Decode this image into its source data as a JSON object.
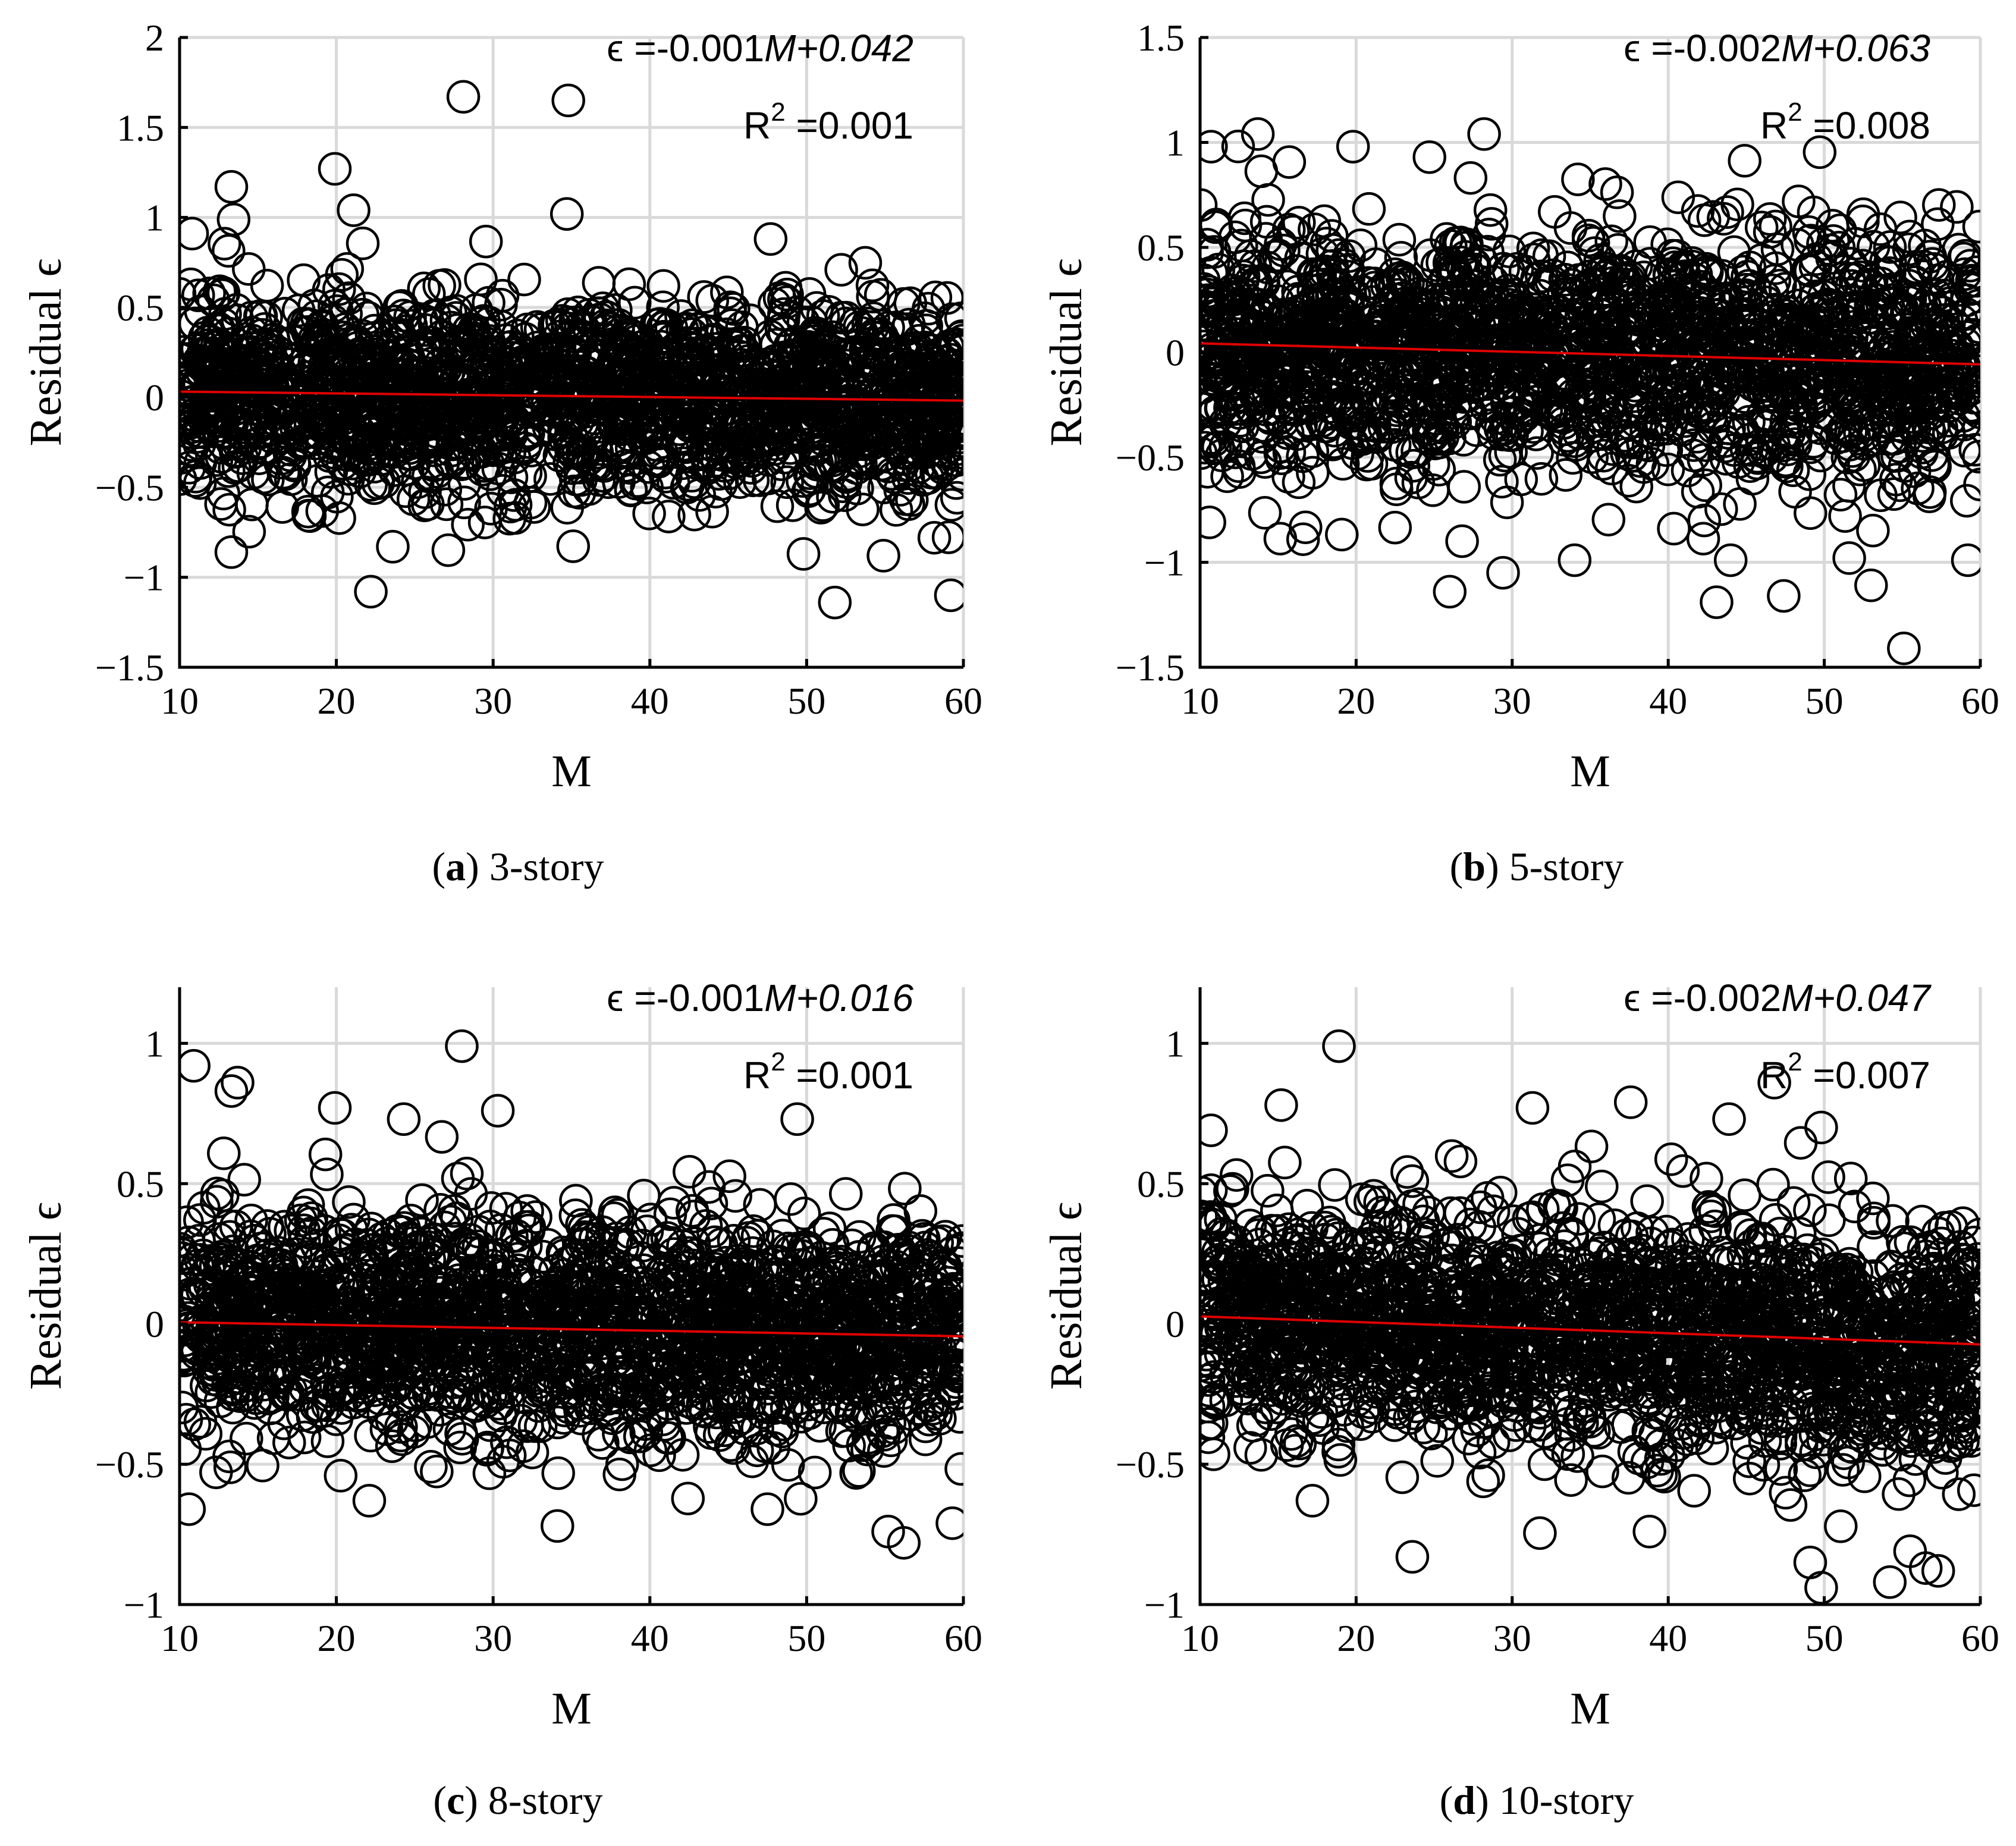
{
  "chart_data": [
    {
      "type": "scatter",
      "caption_letter": "a",
      "caption_text": " 3-story",
      "xlabel": "M",
      "ylabel": "Residual ϵ",
      "xlim": [
        10,
        60
      ],
      "ylim": [
        -1.5,
        2
      ],
      "xticks": [
        10,
        20,
        30,
        40,
        50,
        60
      ],
      "yticks": [
        -1.5,
        -1,
        -0.5,
        0,
        0.5,
        1,
        1.5,
        2
      ],
      "ytick_labels": [
        "−1.5",
        "−1",
        "−0.5",
        "0",
        "0.5",
        "1",
        "1.5",
        "2"
      ],
      "fit": {
        "slope": -0.001,
        "intercept": 0.042
      },
      "eq_prefix": "ϵ =-0.001",
      "eq_var": "M",
      "eq_suffix": "+0.042",
      "r2_label": "R",
      "r2_sup": "2",
      "r2_value": " =0.001",
      "n_points": 2000,
      "cloud_sd": 0.27,
      "seed": 11,
      "outliers": [
        [
          28.1,
          1.67
        ],
        [
          34.8,
          1.65
        ],
        [
          19.9,
          1.27
        ],
        [
          13.3,
          1.17
        ],
        [
          21.1,
          1.04
        ],
        [
          10.8,
          0.91
        ],
        [
          47.7,
          0.88
        ],
        [
          22.2,
          -1.08
        ],
        [
          51.8,
          -1.14
        ],
        [
          59.2,
          -1.1
        ],
        [
          13.3,
          -0.86
        ],
        [
          49.8,
          -0.87
        ],
        [
          54.9,
          -0.88
        ],
        [
          23.6,
          -0.83
        ]
      ]
    },
    {
      "type": "scatter",
      "caption_letter": "b",
      "caption_text": " 5-story",
      "xlabel": "M",
      "ylabel": "Residual ϵ",
      "xlim": [
        10,
        60
      ],
      "ylim": [
        -1.5,
        1.5
      ],
      "xticks": [
        10,
        20,
        30,
        40,
        50,
        60
      ],
      "yticks": [
        -1.5,
        -1,
        -0.5,
        0,
        0.5,
        1,
        1.5
      ],
      "ytick_labels": [
        "−1.5",
        "−1",
        "−0.5",
        "0",
        "0.5",
        "1",
        "1.5"
      ],
      "fit": {
        "slope": -0.002,
        "intercept": 0.063
      },
      "eq_prefix": "ϵ =-0.002",
      "eq_var": "M",
      "eq_suffix": "+0.063",
      "r2_label": "R",
      "r2_sup": "2",
      "r2_value": " =0.008",
      "n_points": 2000,
      "cloud_sd": 0.29,
      "seed": 23,
      "outliers": [
        [
          13.7,
          1.04
        ],
        [
          28.2,
          1.04
        ],
        [
          10.7,
          0.98
        ],
        [
          19.8,
          0.98
        ],
        [
          24.7,
          0.93
        ],
        [
          55.1,
          -1.41
        ],
        [
          43.1,
          -1.19
        ],
        [
          47.4,
          -1.16
        ],
        [
          26.0,
          -1.14
        ],
        [
          53.0,
          -1.11
        ],
        [
          44.0,
          -0.99
        ],
        [
          34.0,
          -0.99
        ],
        [
          59.2,
          -0.99
        ],
        [
          51.6,
          -0.98
        ],
        [
          10.6,
          -0.81
        ],
        [
          16.6,
          -0.89
        ]
      ]
    },
    {
      "type": "scatter",
      "caption_letter": "c",
      "caption_text": " 8-story",
      "xlabel": "M",
      "ylabel": "Residual ϵ",
      "xlim": [
        10,
        60
      ],
      "ylim": [
        -1,
        1.2
      ],
      "xticks": [
        10,
        20,
        30,
        40,
        50,
        60
      ],
      "yticks": [
        -1,
        -0.5,
        0,
        0.5,
        1
      ],
      "ytick_labels": [
        "−1",
        "−0.5",
        "0",
        "0.5",
        "1"
      ],
      "fit": {
        "slope": -0.001,
        "intercept": 0.016
      },
      "eq_prefix": "ϵ =-0.001",
      "eq_var": "M",
      "eq_suffix": "+0.016",
      "r2_label": "R",
      "r2_sup": "2",
      "r2_value": " =0.001",
      "n_points": 2000,
      "cloud_sd": 0.2,
      "seed": 37,
      "outliers": [
        [
          28.0,
          0.99
        ],
        [
          10.9,
          0.92
        ],
        [
          13.7,
          0.86
        ],
        [
          13.3,
          0.83
        ],
        [
          30.3,
          0.76
        ],
        [
          19.9,
          0.77
        ],
        [
          24.3,
          0.73
        ],
        [
          49.4,
          0.73
        ],
        [
          56.2,
          -0.78
        ],
        [
          10.6,
          -0.66
        ],
        [
          34.1,
          -0.72
        ],
        [
          55.2,
          -0.74
        ],
        [
          59.3,
          -0.71
        ],
        [
          22.1,
          -0.63
        ],
        [
          47.5,
          -0.66
        ]
      ]
    },
    {
      "type": "scatter",
      "caption_letter": "d",
      "caption_text": " 10-story",
      "xlabel": "M",
      "ylabel": "Residual ϵ",
      "xlim": [
        10,
        60
      ],
      "ylim": [
        -1,
        1.2
      ],
      "xticks": [
        10,
        20,
        30,
        40,
        50,
        60
      ],
      "yticks": [
        -1,
        -0.5,
        0,
        0.5,
        1
      ],
      "ytick_labels": [
        "−1",
        "−0.5",
        "0",
        "0.5",
        "1"
      ],
      "fit": {
        "slope": -0.002,
        "intercept": 0.047
      },
      "eq_prefix": "ϵ =-0.002",
      "eq_var": "M",
      "eq_suffix": "+0.047",
      "r2_label": "R",
      "r2_sup": "2",
      "r2_value": " =0.007",
      "n_points": 2000,
      "cloud_sd": 0.21,
      "seed": 53,
      "outliers": [
        [
          18.9,
          0.99
        ],
        [
          46.8,
          0.86
        ],
        [
          15.2,
          0.78
        ],
        [
          37.6,
          0.79
        ],
        [
          31.3,
          0.77
        ],
        [
          43.9,
          0.73
        ],
        [
          49.8,
          0.7
        ],
        [
          10.7,
          0.69
        ],
        [
          49.8,
          -0.94
        ],
        [
          23.6,
          -0.83
        ],
        [
          54.2,
          -0.92
        ],
        [
          49.1,
          -0.85
        ],
        [
          55.5,
          -0.81
        ],
        [
          56.5,
          -0.87
        ],
        [
          57.3,
          -0.88
        ],
        [
          17.2,
          -0.63
        ],
        [
          38.8,
          -0.74
        ]
      ]
    }
  ]
}
